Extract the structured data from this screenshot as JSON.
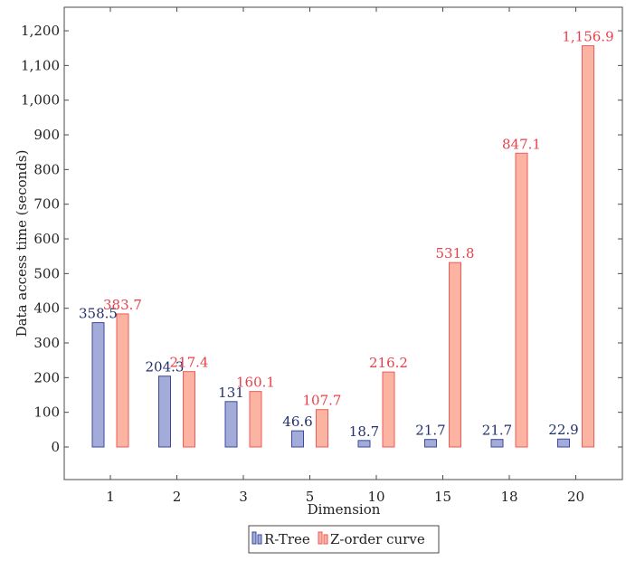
{
  "chart_data": {
    "type": "bar",
    "title": "",
    "xlabel": "Dimension",
    "ylabel": "Data access time (seconds)",
    "categories": [
      "1",
      "2",
      "3",
      "5",
      "10",
      "15",
      "18",
      "20"
    ],
    "ylim": [
      -100,
      1270
    ],
    "yticks": [
      0,
      100,
      200,
      300,
      400,
      500,
      600,
      700,
      800,
      900,
      1000,
      1100,
      1200
    ],
    "ytick_labels": [
      "0",
      "100",
      "200",
      "300",
      "400",
      "500",
      "600",
      "700",
      "800",
      "900",
      "1,000",
      "1,100",
      "1,200"
    ],
    "grid": false,
    "legend_position": "bottom-center",
    "series": [
      {
        "name": "R-Tree",
        "values": [
          358.5,
          204.3,
          131,
          46.6,
          18.7,
          21.7,
          21.7,
          22.9
        ],
        "labels": [
          "358.5",
          "204.3",
          "131",
          "46.6",
          "18.7",
          "21.7",
          "21.7",
          "22.9"
        ],
        "fill": "#a3acd9",
        "stroke": "#3b4a9e",
        "label_color": "#23306b"
      },
      {
        "name": "Z-order curve",
        "values": [
          383.7,
          217.4,
          160.1,
          107.7,
          216.2,
          531.8,
          847.1,
          1156.9
        ],
        "labels": [
          "383.7",
          "217.4",
          "160.1",
          "107.7",
          "216.2",
          "531.8",
          "847.1",
          "1,156.9"
        ],
        "fill": "#fbb4a1",
        "stroke": "#ef5a5a",
        "label_color": "#e8404a"
      }
    ]
  }
}
